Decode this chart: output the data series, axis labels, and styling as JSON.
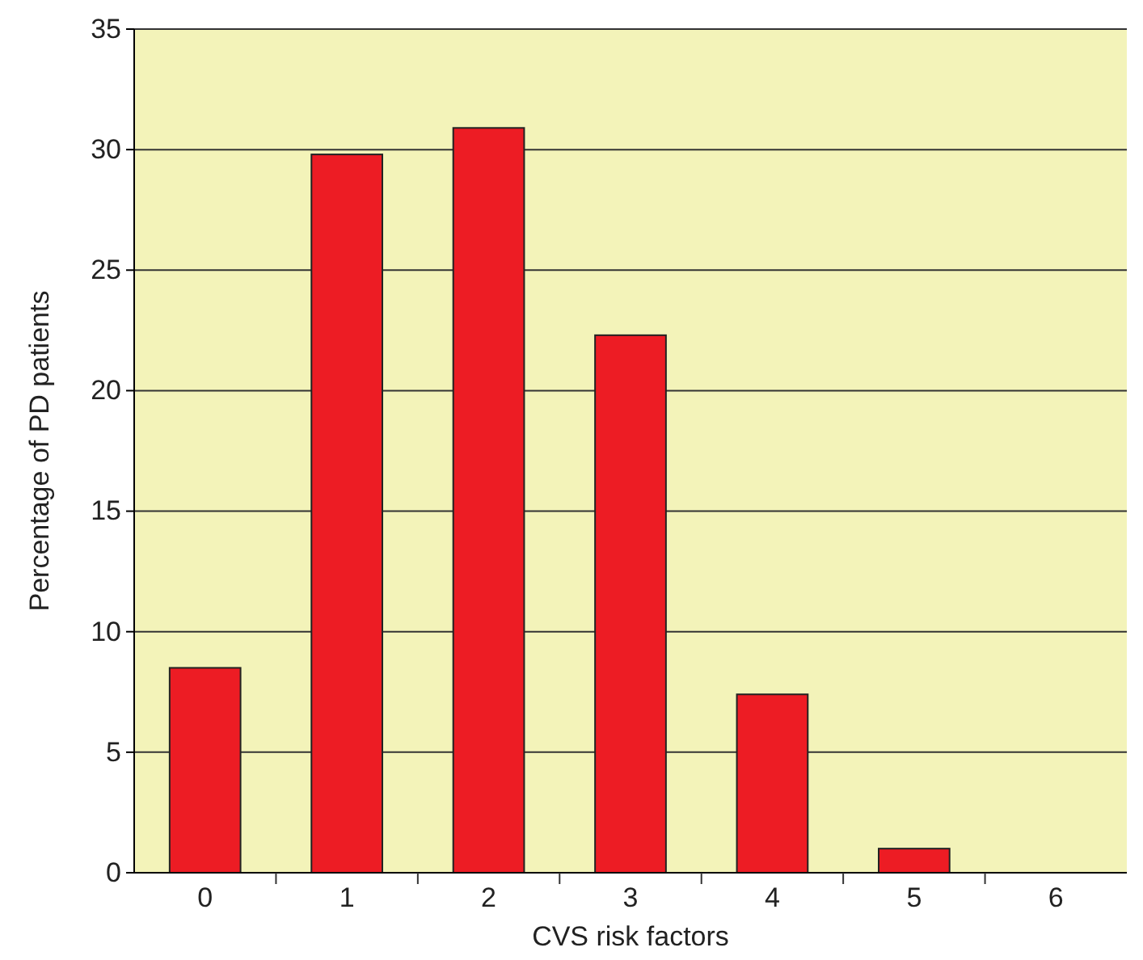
{
  "chart_data": {
    "type": "bar",
    "xlabel": "CVS risk factors",
    "ylabel": "Percentage of PD patients",
    "categories": [
      "0",
      "1",
      "2",
      "3",
      "4",
      "5",
      "6"
    ],
    "values": [
      8.5,
      29.8,
      30.9,
      22.3,
      7.4,
      1.0,
      0
    ],
    "color": "#ed1c24",
    "ylim": [
      0,
      35
    ],
    "yticks": [
      0,
      5,
      10,
      15,
      20,
      25,
      30,
      35
    ],
    "grid": "y"
  }
}
